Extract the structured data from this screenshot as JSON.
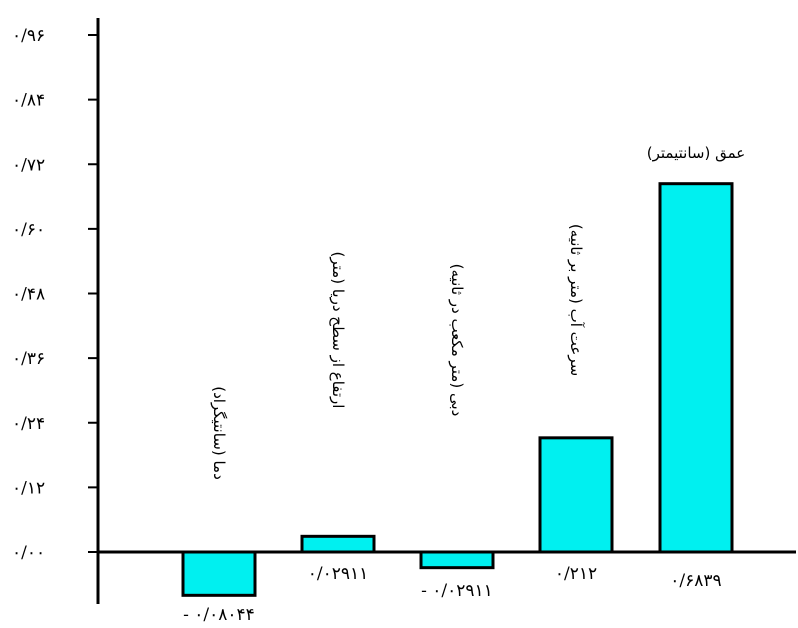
{
  "chart_data": {
    "type": "bar",
    "categories": [
      "دما (سانتیگراد)",
      "ارتفاع از سطح دریا (متر)",
      "دبی (متر مکعب در ثانیه)",
      "سرعت آب (متر بر ثانیه)",
      "عمق (سانتیمتر)"
    ],
    "values": [
      -0.08044,
      0.02911,
      -0.02911,
      0.212,
      0.6839
    ],
    "value_labels": [
      "- ۰/۰۸۰۴۴",
      "۰/۰۲۹۱۱",
      "- ۰/۰۲۹۱۱",
      "۰/۲۱۲",
      "۰/۶۸۳۹"
    ],
    "ytick_values": [
      0,
      0.12,
      0.24,
      0.36,
      0.48,
      0.6,
      0.72,
      0.84,
      0.96
    ],
    "ytick_labels": [
      "۰/۰۰",
      "۰/۱۲",
      "۰/۲۴",
      "۰/۳۶",
      "۰/۴۸",
      "۰/۶۰",
      "۰/۷۲",
      "۰/۸۴",
      "۰/۹۶"
    ],
    "ylim": [
      -0.09,
      0.96
    ],
    "title": "",
    "xlabel": "",
    "ylabel": "",
    "grid": false,
    "bar_color": "#00f0f0",
    "edge_color": "#000000"
  }
}
